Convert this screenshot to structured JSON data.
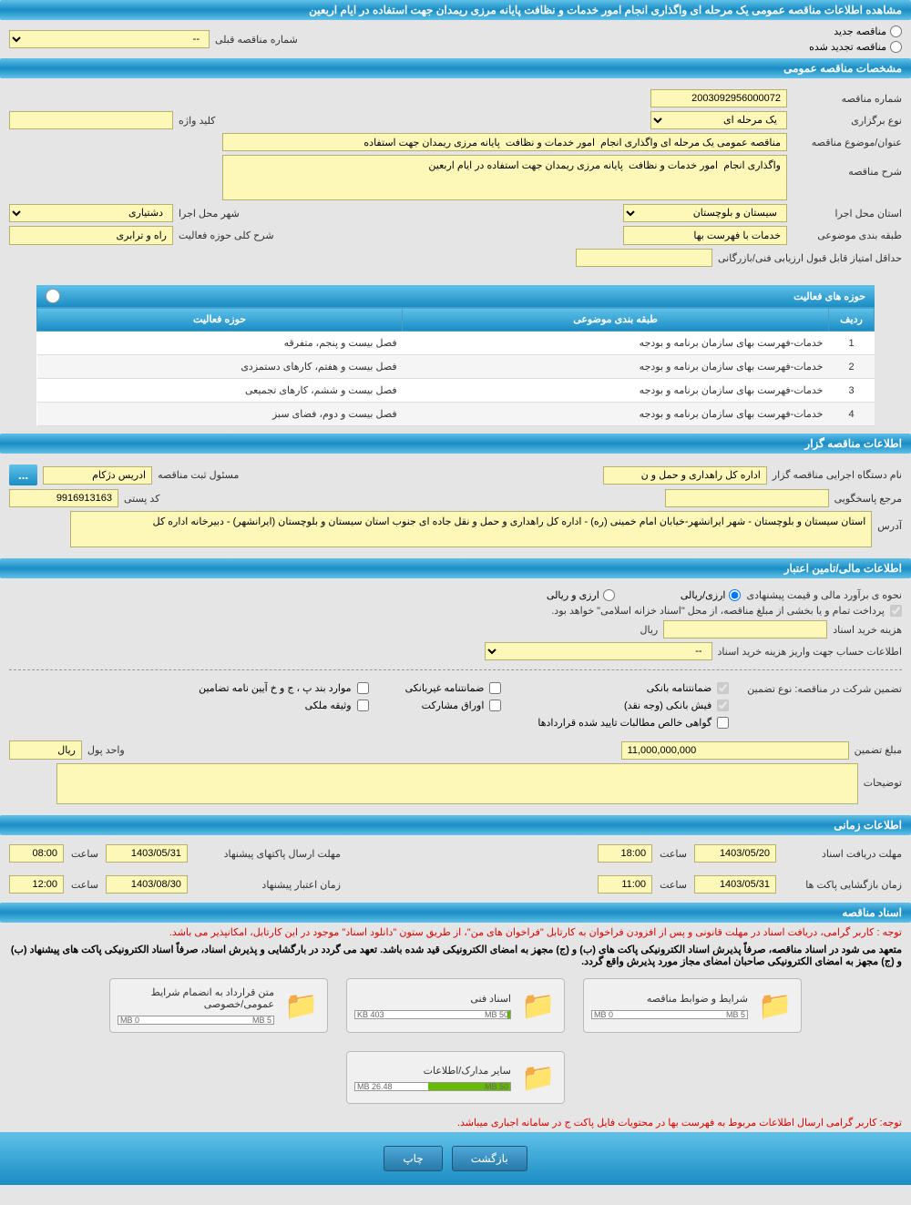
{
  "main_title": "مشاهده اطلاعات مناقصه عمومی یک مرحله ای واگذاری انجام امور خدمات و نظافت پایانه مرزی ریمدان جهت استفاده در ایام اربعین",
  "radios": {
    "new": "مناقصه جدید",
    "renewed": "مناقصه تجدید شده"
  },
  "prev_number_label": "شماره مناقصه قبلی",
  "prev_number_value": "--",
  "sections": {
    "general": "مشخصات مناقصه عمومی",
    "organizer": "اطلاعات مناقصه گزار",
    "financial": "اطلاعات مالی/تامین اعتبار",
    "timing": "اطلاعات زمانی",
    "documents": "اسناد مناقصه"
  },
  "general": {
    "number_label": "شماره مناقصه",
    "number": "2003092956000072",
    "type_label": "نوع برگزاری",
    "type": "یک مرحله ای",
    "keyword_label": "کلید واژه",
    "keyword": "",
    "subject_label": "عنوان/موضوع مناقصه",
    "subject": "مناقصه عمومی یک مرحله ای واگذاری انجام  امور خدمات و نظافت  پایانه مرزی ریمدان جهت استفاده",
    "description_label": "شرح مناقصه",
    "description": "واگذاری انجام  امور خدمات و نظافت  پایانه مرزی ریمدان جهت استفاده در ایام اربعین",
    "province_label": "استان محل اجرا",
    "province": "سیستان و بلوچستان",
    "city_label": "شهر محل اجرا",
    "city": "دشتیاری",
    "category_label": "طبقه بندی موضوعی",
    "category": "خدمات با فهرست بها",
    "activity_desc_label": "شرح کلی حوزه فعالیت",
    "activity_desc": "راه و ترابری",
    "min_score_label": "حداقل امتیاز قابل قبول ارزیابی فنی/بازرگانی",
    "min_score": ""
  },
  "activities": {
    "title": "حوزه های فعالیت",
    "headers": {
      "row": "ردیف",
      "category": "طبقه بندی موضوعی",
      "activity": "حوزه فعالیت"
    },
    "rows": [
      {
        "n": "1",
        "cat": "خدمات-فهرست بهای سازمان برنامه و بودجه",
        "act": "فصل بیست و پنجم، متفرقه"
      },
      {
        "n": "2",
        "cat": "خدمات-فهرست بهای سازمان برنامه و بودجه",
        "act": "فصل بیست و هفتم، کارهای دستمزدی"
      },
      {
        "n": "3",
        "cat": "خدمات-فهرست بهای سازمان برنامه و بودجه",
        "act": "فصل بیست و ششم، کارهای تجمیعی"
      },
      {
        "n": "4",
        "cat": "خدمات-فهرست بهای سازمان برنامه و بودجه",
        "act": "فصل بیست و دوم، فضای سبز"
      }
    ]
  },
  "organizer": {
    "exec_label": "نام دستگاه اجرایی مناقصه گزار",
    "exec": "اداره کل راهداری و حمل و ن",
    "registrar_label": "مسئول ثبت مناقصه",
    "registrar": "ادریس دژکام",
    "responder_label": "مرجع پاسخگویی",
    "postal_label": "کد پستی",
    "postal": "9916913163",
    "address_label": "آدرس",
    "address": "استان سیستان و بلوچستان - شهر ایرانشهر-خیابان امام خمینی (ره) - اداره کل راهداری و حمل و نقل جاده ای جنوب استان سیستان و بلوچستان (ایرانشهر) - دبیرخانه اداره کل",
    "ellipsis": "..."
  },
  "financial": {
    "estimate_label": "نحوه ی برآورد مالی و قیمت پیشنهادی",
    "rial_currency": "ارزی/ریالی",
    "currency_rial": "ارزی و ریالی",
    "payment_note": "پرداخت تمام و یا بخشی از مبلغ مناقصه، از محل \"اسناد خزانه اسلامی\" خواهد بود.",
    "doc_cost_label": "هزینه خرید اسناد",
    "doc_cost": "",
    "currency_unit": "ریال",
    "account_label": "اطلاعات حساب جهت واریز هزینه خرید اسناد",
    "account": "--",
    "guarantee_label": "تضمین شرکت در مناقصه:   نوع تضمین",
    "bank_guarantee": "ضمانتنامه بانکی",
    "nonbank_guarantee": "ضمانتنامه غیربانکی",
    "items_guarantee": "موارد بند پ ، ج و خ آیین نامه تضامین",
    "bank_receipt": "فیش بانکی (وجه نقد)",
    "participation_papers": "اوراق مشارکت",
    "property_deposit": "وثیقه ملکی",
    "net_claims": "گواهی خالص مطالبات تایید شده قراردادها",
    "guarantee_amount_label": "مبلغ تضمین",
    "guarantee_amount": "11,000,000,000",
    "money_unit_label": "واحد پول",
    "money_unit": "ریال",
    "notes_label": "توضیحات",
    "notes": ""
  },
  "timing": {
    "doc_deadline_label": "مهلت دریافت اسناد",
    "doc_deadline_date": "1403/05/20",
    "doc_deadline_time": "18:00",
    "packet_send_label": "مهلت ارسال پاکتهای پیشنهاد",
    "packet_send_date": "1403/05/31",
    "packet_send_time": "08:00",
    "open_label": "زمان بازگشایی پاکت ها",
    "open_date": "1403/05/31",
    "open_time": "11:00",
    "validity_label": "زمان اعتبار پیشنهاد",
    "validity_date": "1403/08/30",
    "validity_time": "12:00",
    "time_label": "ساعت"
  },
  "docs": {
    "note1": "توجه : کاربر گرامی، دریافت اسناد در مهلت قانونی و پس از افزودن فراخوان به کارتابل \"فراخوان های من\"، از طریق ستون \"دانلود اسناد\" موجود در این کارتابل، امکانپذیر می باشد.",
    "note2": "متعهد می شود در اسناد مناقصه، صرفاً پذیرش اسناد الکترونیکی پاکت های (ب) و (ج) مجهز به امضای الکترونیکی قید شده باشد. تعهد می گردد در بارگشایی و پذیرش اسناد، صرفاً اسناد الکترونیکی پاکت های پیشنهاد (ب) و (ج) مجهز به امضای الکترونیکی صاحبان امضای مجاز مورد پذیرش واقع گردد.",
    "files": [
      {
        "title": "شرایط و ضوابط مناقصه",
        "used": "0 MB",
        "total": "5 MB",
        "fill": 0
      },
      {
        "title": "اسناد فنی",
        "used": "403 KB",
        "total": "50 MB",
        "fill": 2
      },
      {
        "title": "متن قرارداد به انضمام شرایط عمومی/خصوصی",
        "used": "0 MB",
        "total": "5 MB",
        "fill": 0
      },
      {
        "title": "سایر مدارک/اطلاعات",
        "used": "26.48 MB",
        "total": "50 MB",
        "fill": 53
      }
    ],
    "footer_note": "توجه: کاربر گرامی ارسال اطلاعات مربوط به فهرست بها در محتویات فایل پاکت ج در سامانه اجباری میباشد."
  },
  "buttons": {
    "back": "بازگشت",
    "print": "چاپ"
  }
}
